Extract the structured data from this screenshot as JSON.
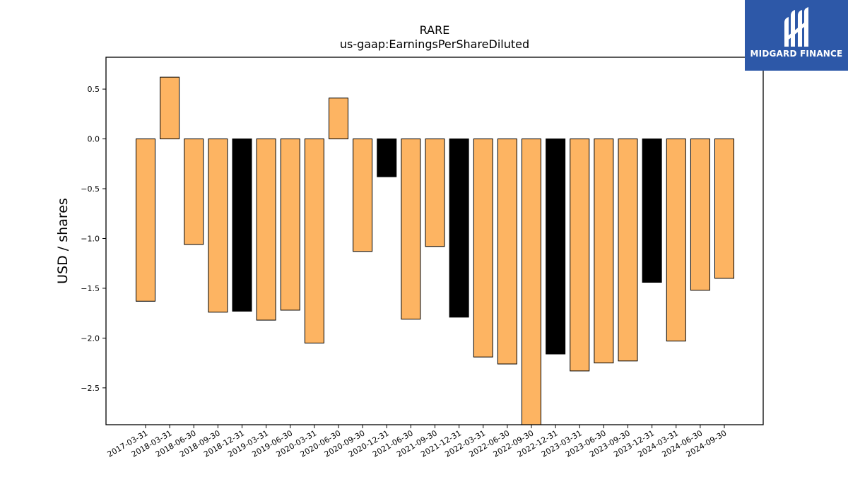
{
  "logo": {
    "text": "MIDGARD FINANCE",
    "background": "#2d58a8"
  },
  "chart_data": {
    "type": "bar",
    "title": "RARE",
    "subtitle": "us-gaap:EarningsPerShareDiluted",
    "xlabel": "",
    "ylabel": "USD / shares",
    "ylim": [
      -2.87,
      0.82
    ],
    "yticks": [
      0.5,
      0.0,
      -0.5,
      -1.0,
      -1.5,
      -2.0,
      -2.5
    ],
    "ytick_labels": [
      "0.5",
      "0.0",
      "−0.5",
      "−1.0",
      "−1.5",
      "−2.0",
      "−2.5"
    ],
    "grid": false,
    "colors": {
      "quarter": "#fdb462",
      "year_end": "#000000",
      "edge": "#000000"
    },
    "categories": [
      "2017-03-31",
      "2018-03-31",
      "2018-06-30",
      "2018-09-30",
      "2018-12-31",
      "2019-03-31",
      "2019-06-30",
      "2020-03-31",
      "2020-06-30",
      "2020-09-30",
      "2020-12-31",
      "2021-06-30",
      "2021-09-30",
      "2021-12-31",
      "2022-03-31",
      "2022-06-30",
      "2022-09-30",
      "2022-12-31",
      "2023-03-31",
      "2023-06-30",
      "2023-09-30",
      "2023-12-31",
      "2024-03-31",
      "2024-06-30",
      "2024-09-30"
    ],
    "values": [
      -1.63,
      0.62,
      -1.06,
      -1.74,
      -1.73,
      -1.82,
      -1.72,
      -2.05,
      0.41,
      -1.13,
      -0.38,
      -1.81,
      -1.08,
      -1.79,
      -2.19,
      -2.26,
      -2.87,
      -2.16,
      -2.33,
      -2.25,
      -2.23,
      -1.44,
      -2.03,
      -1.52,
      -1.4
    ],
    "kinds": [
      "quarter",
      "quarter",
      "quarter",
      "quarter",
      "year_end",
      "quarter",
      "quarter",
      "quarter",
      "quarter",
      "quarter",
      "year_end",
      "quarter",
      "quarter",
      "year_end",
      "quarter",
      "quarter",
      "quarter",
      "year_end",
      "quarter",
      "quarter",
      "quarter",
      "year_end",
      "quarter",
      "quarter",
      "quarter"
    ]
  }
}
